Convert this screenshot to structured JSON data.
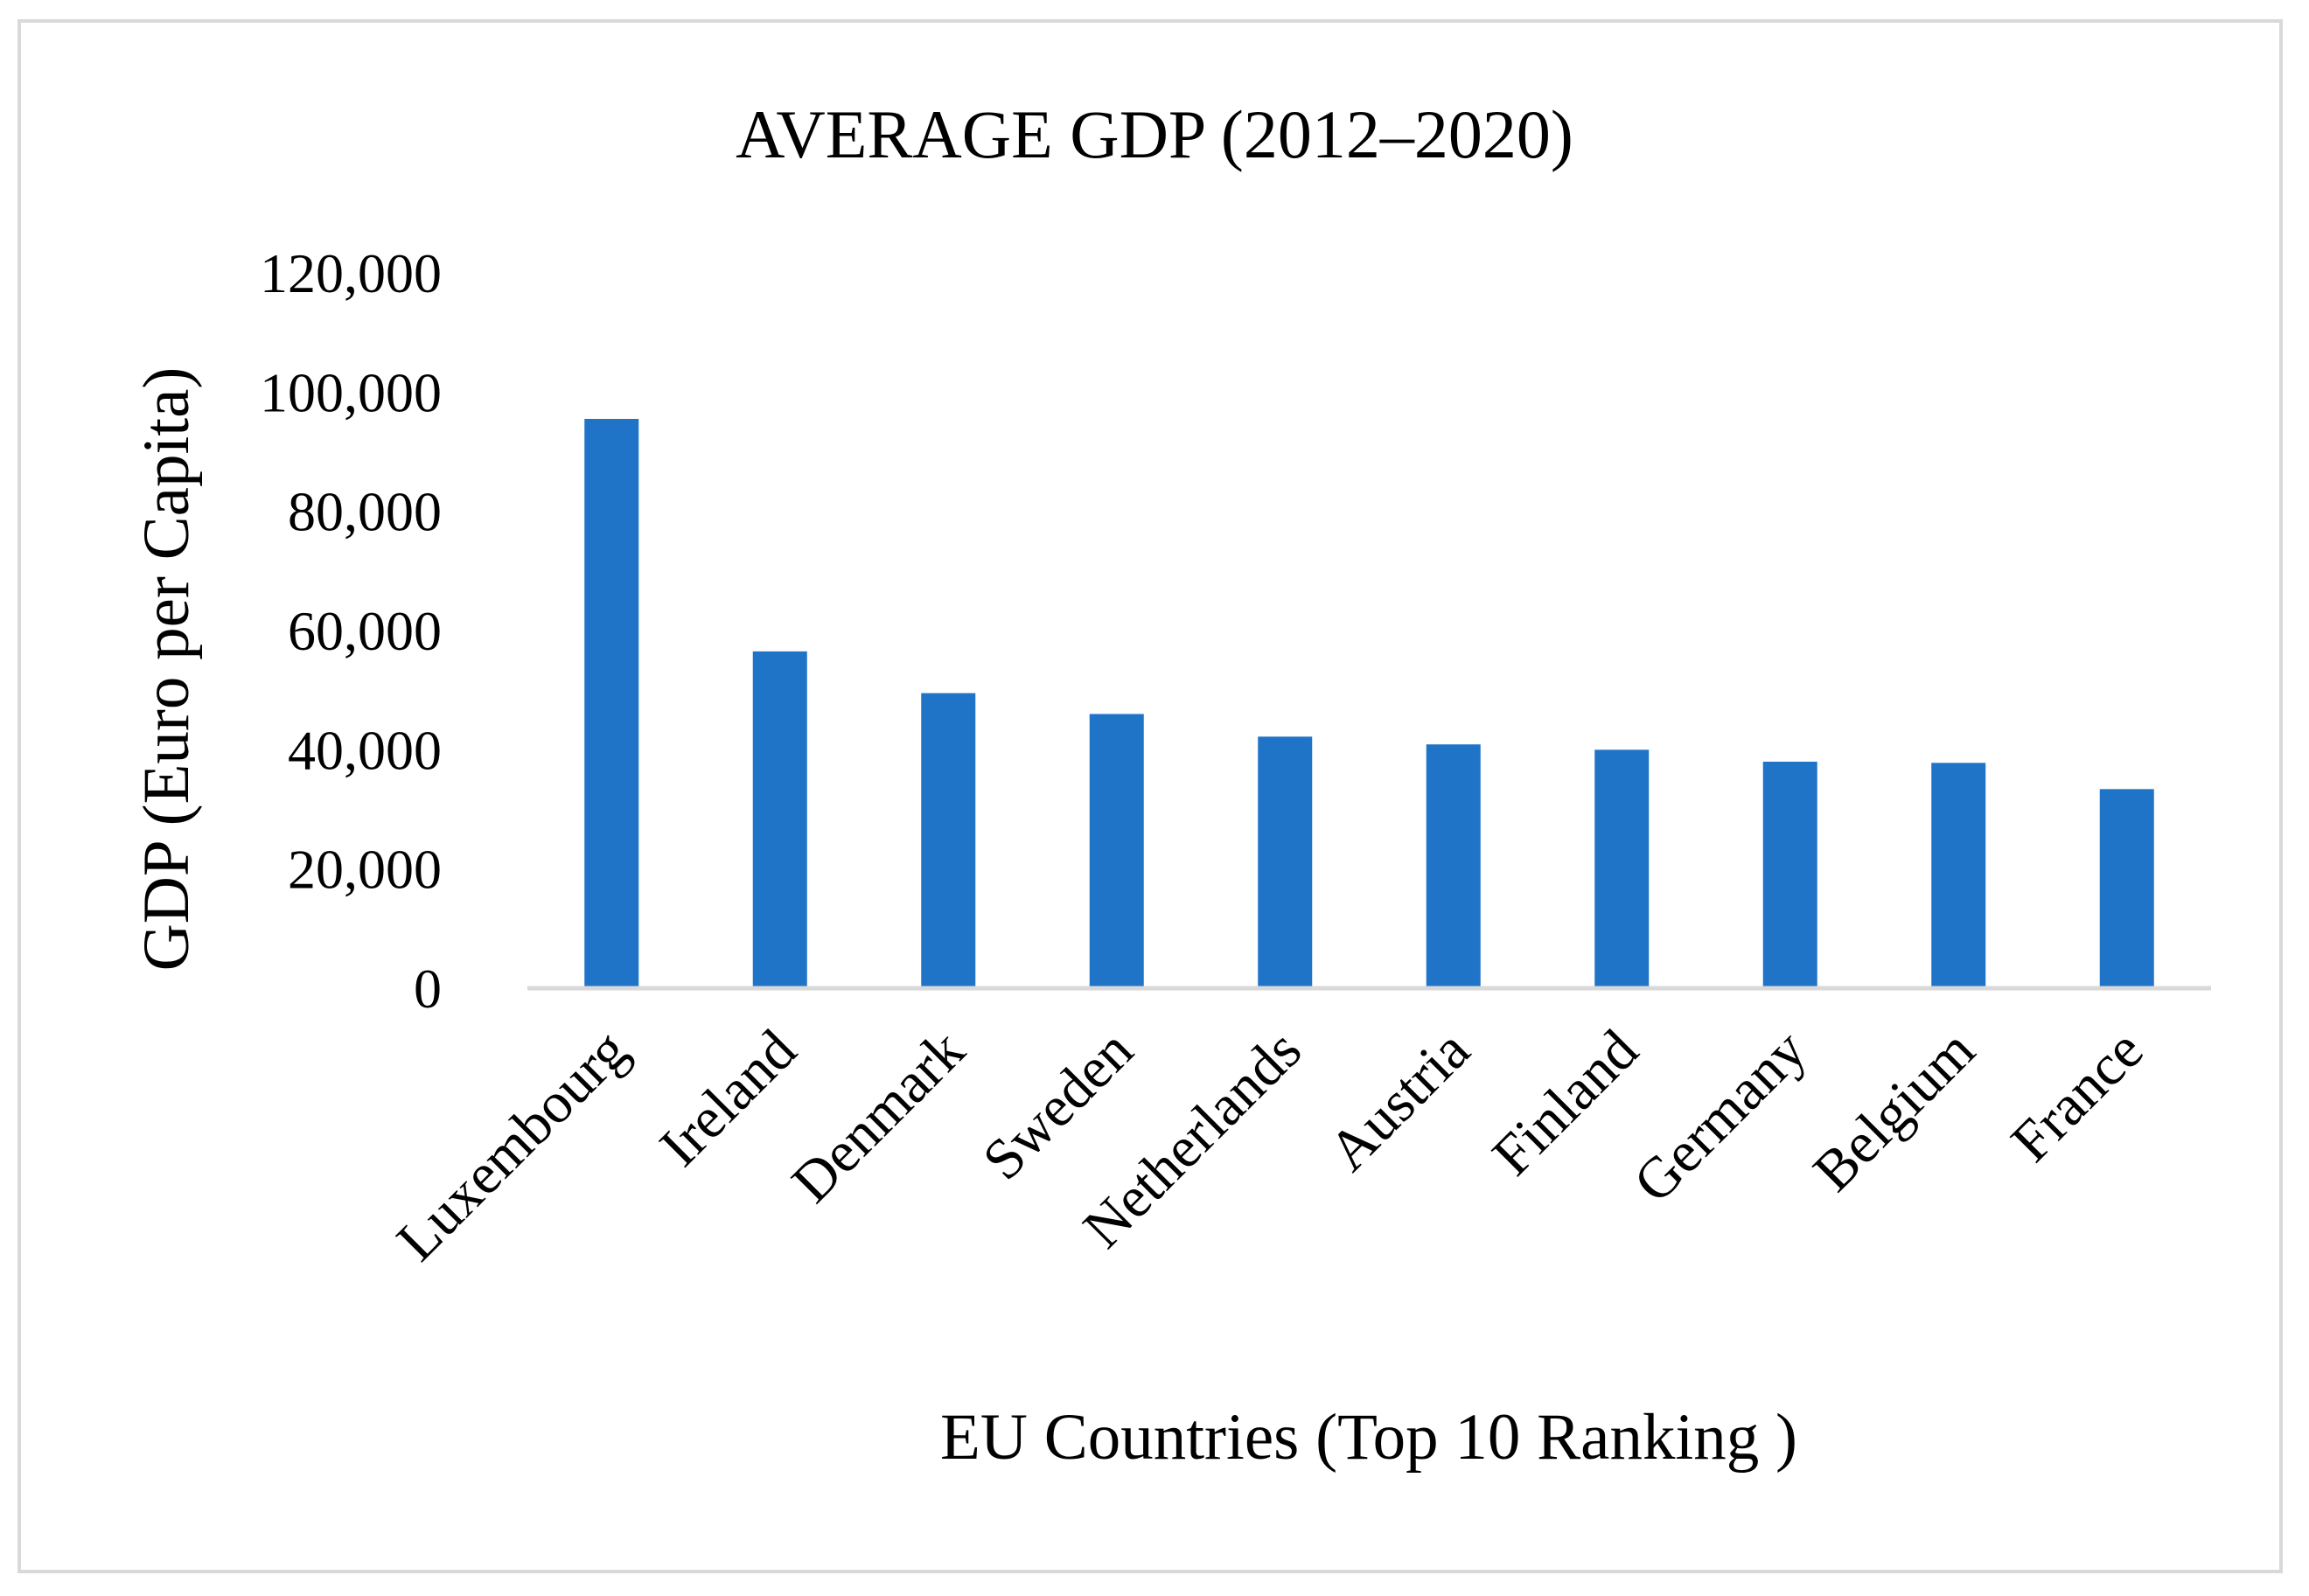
{
  "chart_data": {
    "type": "bar",
    "title": "AVERAGE GDP (2012–2020)",
    "xlabel": "EU Countries (Top 10 Ranking )",
    "ylabel": "GDP (Euro per Capita)",
    "categories": [
      "Luxembourg",
      "Ireland",
      "Denmark",
      "Sweden",
      "Netherlands",
      "Austria",
      "Finland",
      "Germany",
      "Belgium",
      "France"
    ],
    "values": [
      95500,
      56500,
      49500,
      46000,
      42200,
      40900,
      40000,
      38000,
      37800,
      33400
    ],
    "ylim": [
      0,
      120000
    ],
    "yticks": [
      "0",
      "20,000",
      "40,000",
      "60,000",
      "80,000",
      "100,000",
      "120,000"
    ],
    "grid": false,
    "legend": "none",
    "bar_color": "#1f74c8",
    "axis_color": "#d9d9d9"
  }
}
